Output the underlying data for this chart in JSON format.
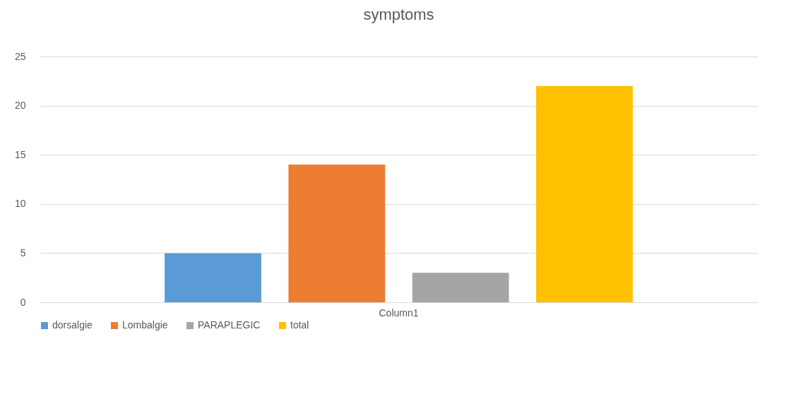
{
  "chart_data": {
    "type": "bar",
    "title": "symptoms",
    "categories": [
      "Column1"
    ],
    "series": [
      {
        "name": "dorsalgie",
        "color": "#5b9bd5",
        "values": [
          5
        ]
      },
      {
        "name": "Lombalgie",
        "color": "#ed7d31",
        "values": [
          14
        ]
      },
      {
        "name": "PARAPLEGIC",
        "color": "#a5a5a5",
        "values": [
          3
        ]
      },
      {
        "name": "total",
        "color": "#ffc000",
        "values": [
          22
        ]
      }
    ],
    "ylim": [
      0,
      25
    ],
    "yticks": [
      0,
      5,
      10,
      15,
      20,
      25
    ],
    "grid": "y",
    "legend": "bottom"
  }
}
